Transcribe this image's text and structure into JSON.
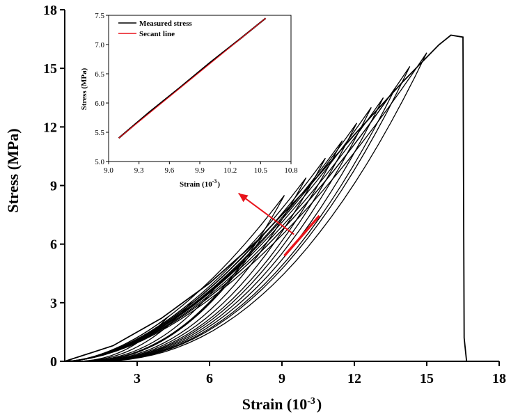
{
  "chart_data": [
    {
      "id": "main",
      "type": "line",
      "xlabel": "Strain (10",
      "xlabel_sup": "-3",
      "xlabel_end": ")",
      "ylabel": "Stress (MPa)",
      "xlim": [
        0,
        18
      ],
      "ylim": [
        0,
        18
      ],
      "xticks": [
        "3",
        "6",
        "9",
        "12",
        "15",
        "18"
      ],
      "yticks": [
        "0",
        "3",
        "6",
        "9",
        "12",
        "15",
        "18"
      ],
      "description_series": "cyclic loading–unloading loops",
      "loop_peaks": [
        {
          "x": 4.3,
          "y": 2.3
        },
        {
          "x": 5.3,
          "y": 3.1
        },
        {
          "x": 6.4,
          "y": 4.0
        },
        {
          "x": 7.4,
          "y": 5.1
        },
        {
          "x": 8.3,
          "y": 6.6
        },
        {
          "x": 9.1,
          "y": 8.5
        },
        {
          "x": 10.0,
          "y": 9.4
        },
        {
          "x": 10.8,
          "y": 10.4
        },
        {
          "x": 11.5,
          "y": 11.3
        },
        {
          "x": 12.1,
          "y": 12.2
        },
        {
          "x": 12.7,
          "y": 13.0
        },
        {
          "x": 13.2,
          "y": 13.5
        },
        {
          "x": 13.7,
          "y": 14.0
        },
        {
          "x": 14.3,
          "y": 15.1
        },
        {
          "x": 15.0,
          "y": 15.8
        }
      ],
      "final_envelope": [
        [
          0,
          0
        ],
        [
          2.0,
          0.8
        ],
        [
          4.0,
          2.2
        ],
        [
          6.0,
          4.0
        ],
        [
          8.0,
          6.2
        ],
        [
          10.0,
          8.8
        ],
        [
          12.0,
          11.6
        ],
        [
          14.0,
          14.3
        ],
        [
          15.5,
          16.2
        ],
        [
          16.0,
          16.7
        ],
        [
          16.5,
          16.6
        ]
      ],
      "failure_drop": [
        [
          16.5,
          16.6
        ],
        [
          16.55,
          1.2
        ],
        [
          16.65,
          0
        ]
      ],
      "highlight_segment": {
        "x": [
          9.1,
          10.55
        ],
        "y": [
          5.4,
          7.45
        ],
        "color": "#e8141b"
      },
      "arrow": {
        "from": [
          9.5,
          6.5
        ],
        "to": [
          7.2,
          8.6
        ],
        "color": "#e8141b"
      }
    },
    {
      "id": "inset",
      "type": "line",
      "xlabel": "Strain (10",
      "xlabel_sup": "-3",
      "xlabel_end": ")",
      "ylabel": "Stress (MPa)",
      "xlim": [
        9.0,
        10.8
      ],
      "ylim": [
        5.0,
        7.5
      ],
      "xticks": [
        "9.0",
        "9.3",
        "9.6",
        "9.9",
        "10.2",
        "10.5",
        "10.8"
      ],
      "yticks": [
        "5.0",
        "5.5",
        "6.0",
        "6.5",
        "7.0",
        "7.5"
      ],
      "series": [
        {
          "name": "Measured stress",
          "color": "#000000",
          "x": [
            9.1,
            9.4,
            9.7,
            10.0,
            10.3,
            10.55
          ],
          "y": [
            5.4,
            5.84,
            6.26,
            6.69,
            7.1,
            7.45
          ]
        },
        {
          "name": "Secant line",
          "color": "#e8141b",
          "x": [
            9.1,
            10.55
          ],
          "y": [
            5.4,
            7.45
          ]
        }
      ],
      "legend": "top-left"
    }
  ]
}
